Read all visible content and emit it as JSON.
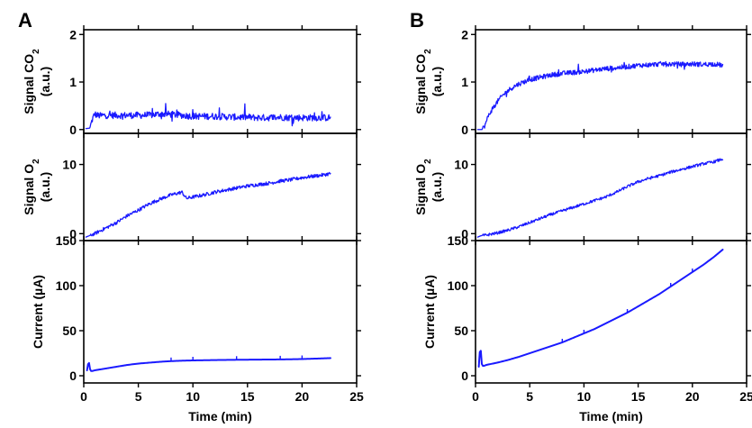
{
  "panels": [
    {
      "letter": "A"
    },
    {
      "letter": "B"
    }
  ],
  "colors": {
    "series": "#1a1aff"
  },
  "chart_data": [
    {
      "panel": "A",
      "row": 0,
      "type": "line",
      "ylabel_lines": [
        "Signal CO|2",
        "(a.u.)"
      ],
      "xlim": [
        0,
        25
      ],
      "ylim": [
        -0.08,
        2.1
      ],
      "yticks": [
        0,
        1,
        2
      ],
      "xticks": [
        0,
        5,
        10,
        15,
        20,
        25
      ],
      "show_xticklabels": false,
      "noise": 0.07,
      "spikes": 0.18,
      "x": [
        0.2,
        0.55,
        0.8,
        1.0,
        1.2,
        1.5,
        2,
        3,
        4,
        5,
        6,
        7,
        8,
        9,
        10,
        11,
        12,
        13,
        14,
        15,
        16,
        17,
        18,
        19,
        20,
        21,
        22,
        22.6
      ],
      "y": [
        0.02,
        0.03,
        0.22,
        0.33,
        0.3,
        0.29,
        0.3,
        0.3,
        0.3,
        0.3,
        0.3,
        0.33,
        0.32,
        0.3,
        0.28,
        0.28,
        0.28,
        0.27,
        0.26,
        0.26,
        0.25,
        0.25,
        0.26,
        0.25,
        0.25,
        0.25,
        0.25,
        0.25
      ]
    },
    {
      "panel": "A",
      "row": 1,
      "type": "line",
      "ylabel_lines": [
        "Signal O|2",
        "(a.u.)"
      ],
      "xlim": [
        0,
        25
      ],
      "ylim": [
        -1,
        14.5
      ],
      "yticks": [
        0,
        10
      ],
      "xticks": [
        0,
        5,
        10,
        15,
        20,
        25
      ],
      "show_xticklabels": false,
      "noise": 0.25,
      "spikes": 0,
      "x": [
        0.2,
        0.5,
        1,
        2,
        3,
        4,
        5,
        6,
        7,
        8,
        9,
        9.4,
        10,
        11,
        12,
        13,
        14,
        15,
        16,
        17,
        18,
        19,
        20,
        21,
        22,
        22.6
      ],
      "y": [
        -0.5,
        -0.3,
        0.0,
        0.8,
        1.6,
        2.6,
        3.4,
        4.3,
        5.0,
        5.6,
        6.0,
        5.1,
        5.3,
        5.6,
        6.0,
        6.3,
        6.6,
        6.9,
        7.1,
        7.3,
        7.6,
        7.8,
        8.1,
        8.3,
        8.5,
        8.7
      ]
    },
    {
      "panel": "A",
      "row": 2,
      "type": "line",
      "ylabel_lines": [
        "Current (µA)"
      ],
      "xlabel": "Time (min)",
      "xlim": [
        0,
        25
      ],
      "ylim": [
        -8,
        150
      ],
      "yticks": [
        0,
        50,
        100,
        150
      ],
      "xticks": [
        0,
        5,
        10,
        15,
        20,
        25
      ],
      "show_xticklabels": true,
      "noise": 0,
      "spikes": 0,
      "x": [
        0.3,
        0.45,
        0.55,
        0.6,
        0.7,
        1,
        2,
        3,
        4,
        5,
        6,
        7,
        8,
        9,
        10,
        12,
        14,
        16,
        18,
        20,
        22,
        22.6
      ],
      "y": [
        6,
        17,
        9,
        6,
        5,
        6,
        8,
        10,
        12,
        13.5,
        14.5,
        15.5,
        16.2,
        16.7,
        17.0,
        17.4,
        17.7,
        17.9,
        18.1,
        18.5,
        19.3,
        19.6
      ]
    },
    {
      "panel": "B",
      "row": 0,
      "type": "line",
      "ylabel_lines": [
        "Signal CO|2",
        "(a.u.)"
      ],
      "xlim": [
        0,
        25
      ],
      "ylim": [
        -0.08,
        2.1
      ],
      "yticks": [
        0,
        1,
        2
      ],
      "xticks": [
        0,
        5,
        10,
        15,
        20,
        25
      ],
      "show_xticklabels": false,
      "noise": 0.05,
      "spikes": 0.1,
      "x": [
        0.2,
        0.6,
        0.9,
        1.2,
        1.6,
        2,
        2.5,
        3,
        3.5,
        4,
        5,
        6,
        7,
        8,
        9,
        10,
        11,
        12,
        13,
        14,
        15,
        16,
        17,
        18,
        19,
        20,
        21,
        22,
        22.8
      ],
      "y": [
        0.0,
        0.0,
        0.1,
        0.3,
        0.45,
        0.58,
        0.72,
        0.82,
        0.9,
        0.96,
        1.05,
        1.1,
        1.15,
        1.18,
        1.2,
        1.22,
        1.25,
        1.28,
        1.3,
        1.32,
        1.35,
        1.36,
        1.38,
        1.38,
        1.37,
        1.38,
        1.37,
        1.38,
        1.35
      ]
    },
    {
      "panel": "B",
      "row": 1,
      "type": "line",
      "ylabel_lines": [
        "Signal O|2",
        "(a.u.)"
      ],
      "xlim": [
        0,
        25
      ],
      "ylim": [
        -1,
        14.5
      ],
      "yticks": [
        0,
        10
      ],
      "xticks": [
        0,
        5,
        10,
        15,
        20,
        25
      ],
      "show_xticklabels": false,
      "noise": 0.2,
      "spikes": 0,
      "x": [
        0.2,
        0.5,
        1,
        2,
        3,
        4,
        5,
        6,
        7,
        8,
        9,
        10,
        11,
        12,
        13,
        14,
        15,
        16,
        17,
        18,
        19,
        20,
        21,
        22,
        22.8
      ],
      "y": [
        -0.5,
        -0.3,
        -0.2,
        0.1,
        0.5,
        1.0,
        1.6,
        2.2,
        2.8,
        3.3,
        3.8,
        4.3,
        4.8,
        5.3,
        6.0,
        6.8,
        7.5,
        8.0,
        8.4,
        8.9,
        9.3,
        9.7,
        10.1,
        10.4,
        10.8
      ]
    },
    {
      "panel": "B",
      "row": 2,
      "type": "line",
      "ylabel_lines": [
        "Current (µA)"
      ],
      "xlabel": "Time (min)",
      "xlim": [
        0,
        25
      ],
      "ylim": [
        -8,
        150
      ],
      "yticks": [
        0,
        50,
        100,
        150
      ],
      "xticks": [
        0,
        5,
        10,
        15,
        20,
        25
      ],
      "show_xticklabels": true,
      "noise": 0,
      "spikes": 0,
      "x": [
        0.3,
        0.45,
        0.55,
        0.65,
        0.8,
        1,
        2,
        3,
        4,
        5,
        6,
        7,
        8,
        9,
        10,
        11,
        12,
        13,
        14,
        15,
        16,
        17,
        18,
        19,
        20,
        21,
        22,
        22.8
      ],
      "y": [
        10,
        36,
        14,
        11,
        11,
        12,
        14.5,
        17.5,
        21,
        25,
        29,
        33,
        37,
        42,
        47,
        52,
        58,
        64,
        70,
        77,
        84,
        91,
        99,
        107,
        115,
        123,
        132,
        140
      ]
    }
  ]
}
